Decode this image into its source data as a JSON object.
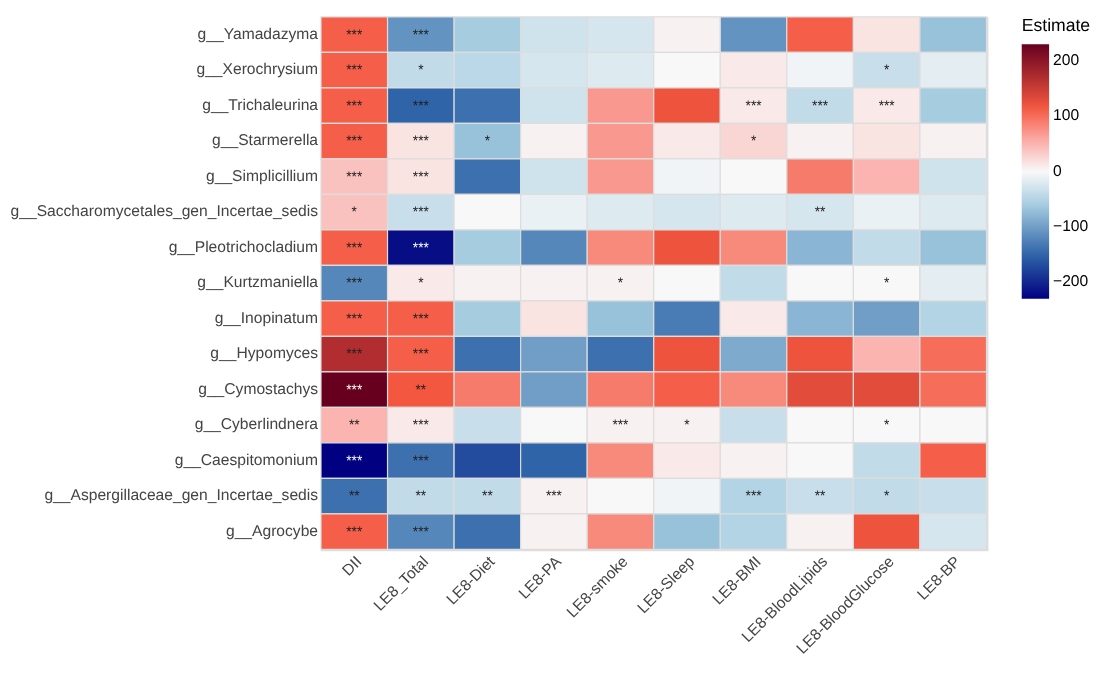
{
  "chart_data": {
    "type": "heatmap",
    "clabel": "Estimate",
    "categories": [
      "DII",
      "LE8_Total",
      "LE8-Diet",
      "LE8-PA",
      "LE8-smoke",
      "LE8-Sleep",
      "LE8-BMI",
      "LE8-BloodLipids",
      "LE8-BloodGlucose",
      "LE8-BP"
    ],
    "y_categories": [
      "g__Yamadazyma",
      "g__Xerochrysium",
      "g__Trichaleurina",
      "g__Starmerella",
      "g__Simplicillium",
      "g__Saccharomycetales_gen_Incertae_sedis",
      "g__Pleotrichocladium",
      "g__Kurtzmaniella",
      "g__Inopinatum",
      "g__Hypomyces",
      "g__Cymostachys",
      "g__Cyberlindnera",
      "g__Caespitomonium",
      "g__Aspergillaceae_gen_Incertae_sedis",
      "g__Agrocybe"
    ],
    "cells": [
      [
        110,
        -110,
        -60,
        -30,
        -25,
        5,
        -110,
        110,
        15,
        -70
      ],
      [
        110,
        -40,
        -45,
        -25,
        -20,
        0,
        10,
        -5,
        -35,
        -15
      ],
      [
        110,
        -150,
        -140,
        -30,
        70,
        120,
        10,
        -40,
        10,
        -60
      ],
      [
        110,
        15,
        -70,
        5,
        70,
        10,
        25,
        5,
        15,
        5
      ],
      [
        40,
        15,
        -140,
        -30,
        70,
        -5,
        0,
        90,
        50,
        -30
      ],
      [
        40,
        -35,
        0,
        -10,
        -20,
        -25,
        -20,
        -25,
        -10,
        -20
      ],
      [
        110,
        -220,
        -60,
        -120,
        80,
        120,
        80,
        -80,
        -40,
        -70
      ],
      [
        -120,
        10,
        5,
        5,
        5,
        0,
        -40,
        0,
        0,
        -15
      ],
      [
        110,
        110,
        -60,
        15,
        -70,
        -130,
        10,
        -80,
        -100,
        -50
      ],
      [
        170,
        110,
        -140,
        -100,
        -140,
        120,
        -90,
        120,
        50,
        100
      ],
      [
        230,
        115,
        90,
        -100,
        90,
        110,
        80,
        130,
        130,
        100
      ],
      [
        50,
        10,
        -35,
        0,
        5,
        5,
        -35,
        0,
        0,
        0
      ],
      [
        -230,
        -140,
        -170,
        -150,
        80,
        10,
        5,
        0,
        -40,
        110
      ],
      [
        -140,
        -40,
        -40,
        5,
        0,
        -5,
        -50,
        -35,
        -40,
        -35
      ],
      [
        110,
        -120,
        -140,
        5,
        80,
        -70,
        -50,
        5,
        120,
        -25
      ]
    ],
    "cell_labels": [
      [
        "***",
        "***",
        null,
        null,
        null,
        null,
        null,
        null,
        null,
        null
      ],
      [
        "***",
        "*",
        null,
        null,
        null,
        null,
        null,
        null,
        "*",
        null
      ],
      [
        "***",
        "***",
        null,
        null,
        null,
        null,
        "***",
        "***",
        "***",
        null
      ],
      [
        "***",
        "***",
        "*",
        null,
        null,
        null,
        "*",
        null,
        null,
        null
      ],
      [
        "***",
        "***",
        null,
        null,
        null,
        null,
        null,
        null,
        null,
        null
      ],
      [
        "*",
        "***",
        null,
        null,
        null,
        null,
        null,
        "**",
        null,
        null
      ],
      [
        "***",
        "***",
        null,
        null,
        null,
        null,
        null,
        null,
        null,
        null
      ],
      [
        "***",
        "*",
        null,
        null,
        "*",
        null,
        null,
        null,
        "*",
        null
      ],
      [
        "***",
        "***",
        null,
        null,
        null,
        null,
        null,
        null,
        null,
        null
      ],
      [
        "***",
        "***",
        null,
        null,
        null,
        null,
        null,
        null,
        null,
        null
      ],
      [
        "***",
        "**",
        null,
        null,
        null,
        null,
        null,
        null,
        null,
        null
      ],
      [
        "**",
        "***",
        null,
        null,
        "***",
        "*",
        null,
        null,
        "*",
        null
      ],
      [
        "***",
        "***",
        null,
        null,
        null,
        null,
        null,
        null,
        null,
        null
      ],
      [
        "**",
        "**",
        "**",
        "***",
        null,
        null,
        "***",
        "**",
        "*",
        null
      ],
      [
        "***",
        "***",
        null,
        null,
        null,
        null,
        null,
        null,
        null,
        null
      ]
    ],
    "clim": [
      -230,
      230
    ],
    "cticks": [
      -200,
      -100,
      0,
      100,
      200
    ]
  }
}
